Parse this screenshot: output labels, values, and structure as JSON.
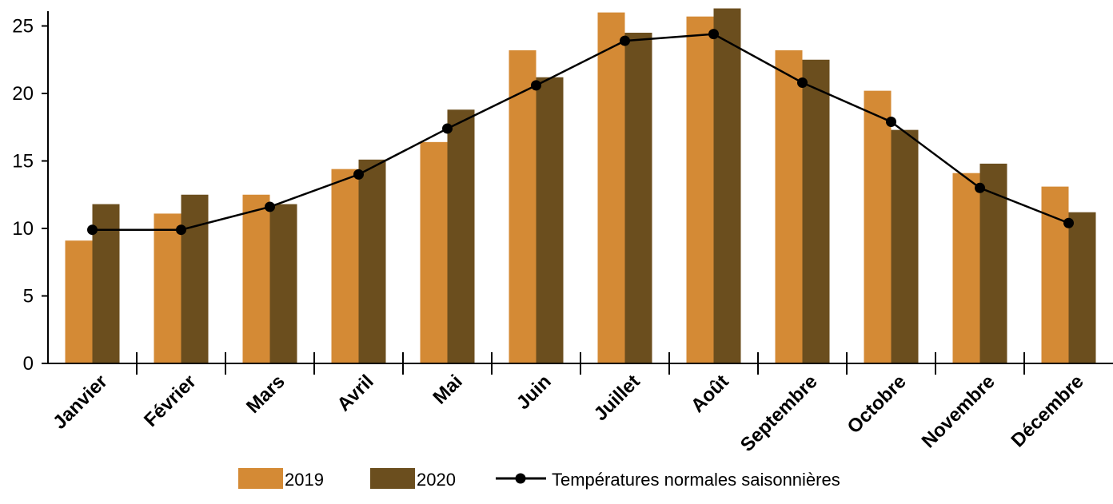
{
  "chart_data": {
    "type": "bar",
    "title": "",
    "xlabel": "",
    "ylabel": "",
    "ylim": [
      0,
      26
    ],
    "yticks": [
      0,
      5,
      10,
      15,
      20,
      25
    ],
    "grid": false,
    "legend_position": "bottom",
    "categories": [
      "Janvier",
      "Février",
      "Mars",
      "Avril",
      "Mai",
      "Juin",
      "Juillet",
      "Août",
      "Septembre",
      "Octobre",
      "Novembre",
      "Décembre"
    ],
    "series": [
      {
        "name": "2019",
        "kind": "bar",
        "color": "#D48A35",
        "values": [
          9.1,
          11.1,
          12.5,
          14.4,
          16.4,
          23.2,
          26.0,
          25.7,
          23.2,
          20.2,
          14.1,
          13.1
        ]
      },
      {
        "name": "2020",
        "kind": "bar",
        "color": "#6B4E1E",
        "values": [
          11.8,
          12.5,
          11.8,
          15.1,
          18.8,
          21.2,
          24.5,
          26.3,
          22.5,
          17.3,
          14.8,
          11.2
        ]
      },
      {
        "name": "Températures normales saisonnières",
        "kind": "line",
        "color": "#000000",
        "values": [
          9.9,
          9.9,
          11.6,
          14.0,
          17.4,
          20.6,
          23.9,
          24.4,
          20.8,
          17.9,
          13.0,
          10.4
        ]
      }
    ]
  }
}
